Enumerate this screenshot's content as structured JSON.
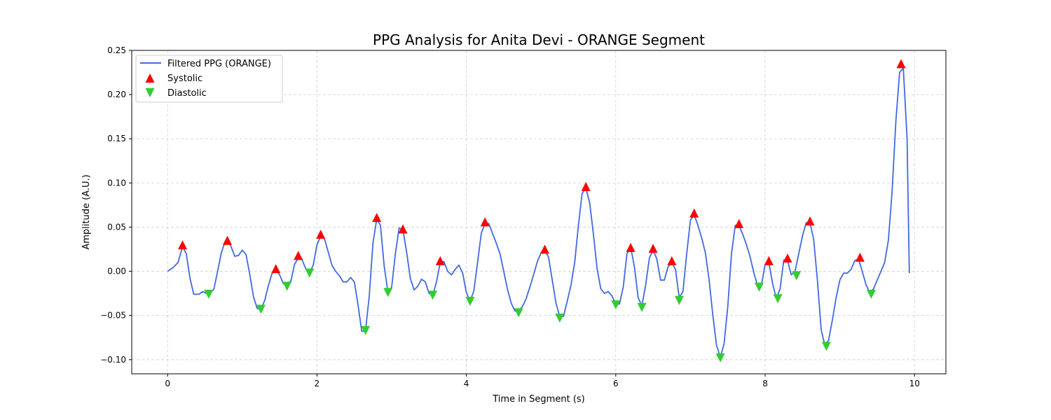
{
  "chart_data": {
    "type": "line",
    "title": "PPG Analysis for Anita Devi - ORANGE Segment",
    "xlabel": "Time in Segment (s)",
    "ylabel": "Amplitude (A.U.)",
    "xlim": [
      -0.48,
      10.42
    ],
    "ylim": [
      -0.116,
      0.25
    ],
    "xticks": [
      0,
      2,
      4,
      6,
      8,
      10
    ],
    "xtick_labels": [
      "0",
      "2",
      "4",
      "6",
      "8",
      "10"
    ],
    "yticks": [
      -0.1,
      -0.05,
      0.0,
      0.05,
      0.1,
      0.15,
      0.2,
      0.25
    ],
    "ytick_labels": [
      "−0.10",
      "−0.05",
      "0.00",
      "0.05",
      "0.10",
      "0.15",
      "0.20",
      "0.25"
    ],
    "grid": true,
    "legend_position": "top-left",
    "series": [
      {
        "name": "Filtered PPG (ORANGE)",
        "kind": "line",
        "color": "#4169e1",
        "x": [
          0.0,
          0.07,
          0.14,
          0.2,
          0.25,
          0.3,
          0.35,
          0.42,
          0.47,
          0.52,
          0.57,
          0.62,
          0.67,
          0.72,
          0.77,
          0.8,
          0.85,
          0.9,
          0.95,
          1.0,
          1.05,
          1.1,
          1.15,
          1.2,
          1.25,
          1.3,
          1.35,
          1.4,
          1.45,
          1.5,
          1.55,
          1.6,
          1.65,
          1.7,
          1.75,
          1.8,
          1.85,
          1.9,
          1.95,
          2.0,
          2.05,
          2.1,
          2.15,
          2.2,
          2.25,
          2.3,
          2.35,
          2.4,
          2.45,
          2.5,
          2.55,
          2.6,
          2.65,
          2.7,
          2.75,
          2.8,
          2.85,
          2.9,
          2.95,
          3.0,
          3.05,
          3.1,
          3.15,
          3.2,
          3.25,
          3.3,
          3.35,
          3.4,
          3.45,
          3.5,
          3.55,
          3.6,
          3.65,
          3.7,
          3.75,
          3.8,
          3.85,
          3.9,
          3.95,
          4.0,
          4.05,
          4.1,
          4.15,
          4.2,
          4.25,
          4.3,
          4.35,
          4.4,
          4.45,
          4.5,
          4.55,
          4.6,
          4.65,
          4.7,
          4.75,
          4.8,
          4.85,
          4.9,
          4.95,
          5.0,
          5.05,
          5.1,
          5.15,
          5.2,
          5.25,
          5.3,
          5.35,
          5.4,
          5.45,
          5.5,
          5.55,
          5.6,
          5.65,
          5.7,
          5.75,
          5.8,
          5.85,
          5.9,
          5.95,
          6.0,
          6.05,
          6.1,
          6.15,
          6.2,
          6.25,
          6.3,
          6.35,
          6.4,
          6.45,
          6.5,
          6.55,
          6.6,
          6.65,
          6.7,
          6.75,
          6.8,
          6.85,
          6.9,
          6.95,
          7.0,
          7.05,
          7.1,
          7.15,
          7.2,
          7.25,
          7.3,
          7.35,
          7.4,
          7.45,
          7.5,
          7.55,
          7.6,
          7.65,
          7.7,
          7.75,
          7.8,
          7.85,
          7.9,
          7.95,
          8.0,
          8.05,
          8.1,
          8.15,
          8.2,
          8.25,
          8.3,
          8.35,
          8.4,
          8.45,
          8.5,
          8.55,
          8.6,
          8.65,
          8.7,
          8.75,
          8.8,
          8.85,
          8.9,
          8.95,
          9.0,
          9.05,
          9.1,
          9.15,
          9.2,
          9.25,
          9.3,
          9.35,
          9.4,
          9.45,
          9.5,
          9.55,
          9.6,
          9.65,
          9.7,
          9.75,
          9.8,
          9.85,
          9.9,
          9.93
        ],
        "y": [
          0.0,
          0.004,
          0.01,
          0.028,
          0.02,
          -0.008,
          -0.026,
          -0.026,
          -0.023,
          -0.025,
          -0.025,
          -0.02,
          0.0,
          0.021,
          0.034,
          0.035,
          0.028,
          0.017,
          0.018,
          0.024,
          0.019,
          -0.003,
          -0.029,
          -0.042,
          -0.043,
          -0.033,
          -0.016,
          -0.002,
          0.002,
          -0.004,
          -0.014,
          -0.015,
          -0.011,
          0.008,
          0.015,
          0.013,
          0.003,
          -0.002,
          0.007,
          0.03,
          0.04,
          0.037,
          0.022,
          0.007,
          0.0,
          -0.005,
          -0.012,
          -0.012,
          -0.007,
          -0.012,
          -0.038,
          -0.068,
          -0.067,
          -0.028,
          0.032,
          0.059,
          0.052,
          0.006,
          -0.024,
          -0.018,
          0.02,
          0.049,
          0.047,
          0.022,
          -0.008,
          -0.021,
          -0.017,
          -0.009,
          -0.012,
          -0.025,
          -0.027,
          -0.012,
          0.01,
          0.011,
          0.0,
          -0.004,
          0.002,
          0.007,
          -0.002,
          -0.024,
          -0.034,
          -0.022,
          0.01,
          0.043,
          0.054,
          0.054,
          0.043,
          0.032,
          0.02,
          0.0,
          -0.02,
          -0.036,
          -0.045,
          -0.045,
          -0.04,
          -0.031,
          -0.018,
          -0.004,
          0.011,
          0.021,
          0.024,
          0.016,
          -0.01,
          -0.036,
          -0.051,
          -0.051,
          -0.034,
          -0.016,
          0.01,
          0.052,
          0.088,
          0.094,
          0.078,
          0.043,
          0.003,
          -0.02,
          -0.025,
          -0.023,
          -0.028,
          -0.037,
          -0.037,
          -0.018,
          0.02,
          0.027,
          0.005,
          -0.03,
          -0.039,
          -0.016,
          0.015,
          0.024,
          0.014,
          -0.01,
          -0.01,
          0.005,
          0.01,
          0.002,
          -0.03,
          -0.023,
          0.02,
          0.058,
          0.064,
          0.052,
          0.038,
          0.021,
          -0.01,
          -0.05,
          -0.084,
          -0.097,
          -0.082,
          -0.04,
          0.02,
          0.052,
          0.052,
          0.042,
          0.03,
          0.016,
          -0.002,
          -0.017,
          -0.016,
          0.008,
          0.01,
          -0.014,
          -0.031,
          -0.02,
          0.013,
          0.012,
          -0.004,
          0.0,
          0.02,
          0.04,
          0.055,
          0.055,
          0.036,
          -0.01,
          -0.066,
          -0.084,
          -0.078,
          -0.055,
          -0.03,
          -0.01,
          -0.002,
          -0.002,
          0.002,
          0.012,
          0.014,
          0.0,
          -0.015,
          -0.024,
          -0.02,
          -0.01,
          0.0,
          0.01,
          0.035,
          0.09,
          0.17,
          0.225,
          0.23,
          0.15,
          -0.002
        ]
      },
      {
        "name": "Systolic",
        "kind": "markers",
        "marker": "triangle-up",
        "color": "#ff0000",
        "x": [
          0.2,
          0.8,
          1.45,
          1.75,
          2.05,
          2.8,
          3.15,
          3.65,
          4.25,
          5.05,
          5.6,
          6.2,
          6.5,
          6.75,
          7.05,
          7.65,
          8.05,
          8.3,
          8.6,
          9.27,
          9.82
        ],
        "y": [
          0.03,
          0.035,
          0.003,
          0.018,
          0.042,
          0.061,
          0.048,
          0.012,
          0.056,
          0.025,
          0.096,
          0.027,
          0.026,
          0.012,
          0.066,
          0.054,
          0.012,
          0.015,
          0.057,
          0.016,
          0.235
        ]
      },
      {
        "name": "Diastolic",
        "kind": "markers",
        "marker": "triangle-down",
        "color": "#32cd32",
        "x": [
          0.55,
          1.25,
          1.6,
          1.9,
          2.65,
          2.95,
          3.55,
          4.05,
          4.7,
          5.25,
          6.0,
          6.35,
          6.85,
          7.4,
          7.92,
          8.17,
          8.42,
          8.82,
          9.42
        ],
        "y": [
          -0.026,
          -0.043,
          -0.017,
          -0.002,
          -0.067,
          -0.024,
          -0.027,
          -0.034,
          -0.047,
          -0.053,
          -0.038,
          -0.041,
          -0.033,
          -0.098,
          -0.018,
          -0.031,
          -0.005,
          -0.085,
          -0.026
        ]
      }
    ]
  }
}
